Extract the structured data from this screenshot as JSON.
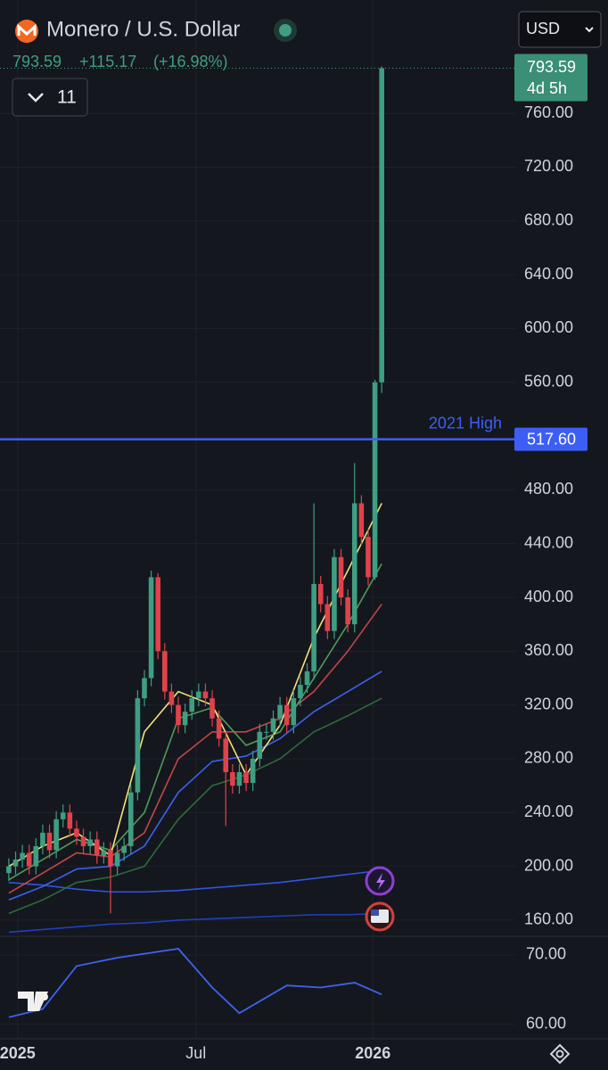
{
  "header": {
    "symbol": "Monero / U.S. Dollar",
    "change": "+115.17",
    "change_pct": "(+16.98%)",
    "indicators": "11",
    "currency": "USD",
    "countdown": "4d 5h"
  },
  "chart_data": {
    "type": "candlestick",
    "last_price": 793.59,
    "xlim": [
      -1.3,
      74.7
    ],
    "xticks": [
      {
        "value": 1.3,
        "label": "2025"
      },
      {
        "value": 27.6,
        "label": "Jul"
      },
      {
        "value": 53.7,
        "label": "2026"
      }
    ],
    "ylim": [
      148,
      841
    ],
    "yticks": [
      {
        "value": 160,
        "label": "160.00"
      },
      {
        "value": 200,
        "label": "200.00"
      },
      {
        "value": 240,
        "label": "240.00"
      },
      {
        "value": 280,
        "label": "280.00"
      },
      {
        "value": 320,
        "label": "320.00"
      },
      {
        "value": 360,
        "label": "360.00"
      },
      {
        "value": 400,
        "label": "400.00"
      },
      {
        "value": 440,
        "label": "440.00"
      },
      {
        "value": 480,
        "label": "480.00"
      },
      {
        "value": 560,
        "label": "560.00"
      },
      {
        "value": 600,
        "label": "600.00"
      },
      {
        "value": 640,
        "label": "640.00"
      },
      {
        "value": 680,
        "label": "680.00"
      },
      {
        "value": 720,
        "label": "720.00"
      },
      {
        "value": 760,
        "label": "760.00"
      }
    ],
    "grid": true,
    "up_color": "#3f9e82",
    "down_color": "#e0424b",
    "open": [
      195,
      200,
      205,
      210,
      200,
      215,
      225,
      212,
      235,
      240,
      228,
      222,
      215,
      220,
      208,
      212,
      200,
      210,
      215,
      255,
      325,
      340,
      415,
      360,
      330,
      320,
      305,
      315,
      325,
      330,
      325,
      310,
      295,
      270,
      260,
      270,
      262,
      280,
      300,
      300,
      310,
      320,
      305,
      325,
      335,
      345,
      410,
      395,
      375,
      430,
      400,
      380,
      470,
      445,
      415,
      560
    ],
    "high": [
      206,
      211,
      216,
      216,
      221,
      231,
      231,
      241,
      246,
      246,
      234,
      228,
      226,
      226,
      218,
      218,
      216,
      221,
      261,
      331,
      346,
      420,
      418,
      366,
      336,
      326,
      321,
      331,
      336,
      336,
      331,
      316,
      301,
      276,
      276,
      276,
      286,
      306,
      306,
      316,
      326,
      326,
      331,
      341,
      351,
      470,
      416,
      401,
      436,
      436,
      406,
      500,
      476,
      451,
      562,
      795
    ],
    "low": [
      189,
      194,
      199,
      194,
      194,
      209,
      206,
      206,
      229,
      222,
      216,
      209,
      209,
      202,
      202,
      165,
      194,
      204,
      209,
      249,
      319,
      334,
      354,
      324,
      314,
      299,
      299,
      309,
      319,
      319,
      304,
      289,
      230,
      254,
      254,
      256,
      256,
      274,
      294,
      294,
      304,
      299,
      299,
      319,
      329,
      339,
      389,
      369,
      369,
      394,
      374,
      374,
      439,
      409,
      413,
      552
    ],
    "close": [
      200,
      205,
      210,
      200,
      215,
      225,
      212,
      235,
      240,
      228,
      222,
      215,
      220,
      208,
      212,
      200,
      210,
      215,
      255,
      325,
      340,
      415,
      360,
      330,
      320,
      305,
      315,
      325,
      330,
      325,
      310,
      295,
      270,
      260,
      270,
      262,
      280,
      300,
      300,
      310,
      320,
      305,
      325,
      335,
      345,
      410,
      395,
      375,
      430,
      400,
      380,
      470,
      445,
      415,
      560,
      793.59
    ],
    "lines": [
      {
        "color": "#1f3fbf",
        "x": [
          0,
          5,
          10,
          15,
          20,
          25,
          30,
          35,
          40,
          45,
          50,
          55
        ],
        "values": [
          151,
          153,
          155,
          157,
          158,
          160,
          161,
          162,
          163,
          164,
          164,
          165
        ]
      },
      {
        "color": "#2f55e0",
        "x": [
          0,
          5,
          10,
          15,
          20,
          25,
          30,
          35,
          40,
          45,
          50,
          55
        ],
        "values": [
          188,
          186,
          183,
          181,
          181,
          182,
          184,
          186,
          188,
          191,
          194,
          197
        ]
      },
      {
        "color": "#2e6b3a",
        "x": [
          0,
          5,
          10,
          15,
          20,
          25,
          30,
          35,
          40,
          45,
          50,
          55
        ],
        "values": [
          165,
          175,
          188,
          192,
          200,
          235,
          260,
          268,
          280,
          300,
          312,
          325
        ]
      },
      {
        "color": "#3b63f0",
        "x": [
          0,
          5,
          10,
          15,
          20,
          25,
          30,
          35,
          40,
          45,
          50,
          55
        ],
        "values": [
          175,
          185,
          198,
          200,
          215,
          255,
          278,
          282,
          295,
          315,
          330,
          345
        ]
      },
      {
        "color": "#c2464a",
        "x": [
          0,
          5,
          10,
          15,
          20,
          25,
          30,
          35,
          40,
          45,
          50,
          55
        ],
        "values": [
          180,
          195,
          210,
          207,
          225,
          280,
          300,
          300,
          310,
          330,
          360,
          395
        ]
      },
      {
        "color": "#4f9a5a",
        "x": [
          0,
          5,
          10,
          15,
          20,
          25,
          30,
          35,
          40,
          45,
          50,
          55
        ],
        "values": [
          190,
          205,
          220,
          212,
          240,
          310,
          318,
          290,
          300,
          340,
          380,
          425
        ]
      },
      {
        "color": "#f2e27a",
        "x": [
          0,
          5,
          10,
          15,
          20,
          25,
          30,
          35,
          40,
          45,
          50,
          55
        ],
        "values": [
          200,
          215,
          225,
          208,
          300,
          330,
          320,
          268,
          305,
          370,
          420,
          470
        ]
      }
    ],
    "hline": {
      "label": "2021 High",
      "value": {
        "value": 517.6,
        "label": "517.60"
      },
      "color": "#3d5ef5"
    },
    "oscillator": {
      "color": "#3c63f0",
      "ylim": [
        57.9,
        72.7
      ],
      "yticks": [
        {
          "value": 60,
          "label": "60.00"
        },
        {
          "value": 70,
          "label": "70.00"
        }
      ],
      "x": [
        0,
        5,
        10,
        16,
        25,
        30,
        34,
        41,
        46,
        51,
        55
      ],
      "values": [
        61,
        62.2,
        68.4,
        69.6,
        70.9,
        65.3,
        61.6,
        65.6,
        65.3,
        66,
        64.3
      ]
    }
  }
}
